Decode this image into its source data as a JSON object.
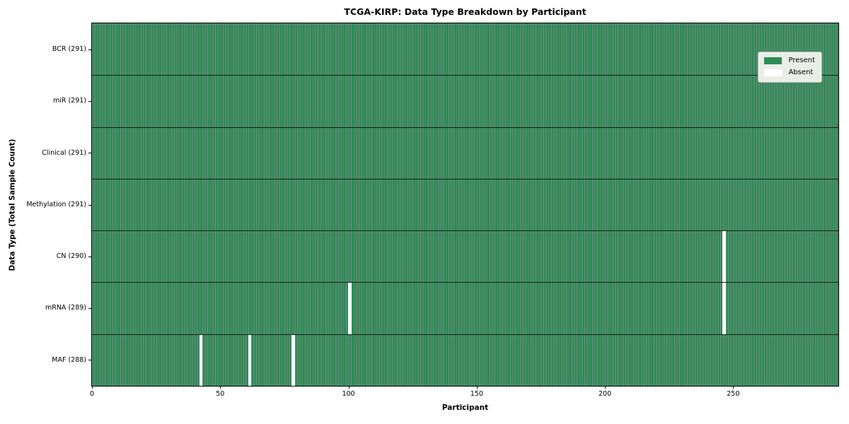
{
  "colors": {
    "present": "#2e8b57",
    "absent": "#ffffff",
    "bar_edge": "rgba(10,40,25,0.55)",
    "row_divider": "#10211a",
    "spine": "#000000",
    "legend_bg": "#e9efe7",
    "legend_border": "#b4bab1"
  },
  "chart_data": {
    "type": "heatmap",
    "title": "TCGA-KIRP: Data Type Breakdown by Participant",
    "xlabel": "Participant",
    "ylabel": "Data Type (Total Sample Count)",
    "x_range": [
      0,
      291
    ],
    "x_ticks": [
      0,
      50,
      100,
      150,
      200,
      250
    ],
    "n_participants": 291,
    "grid": false,
    "legend_position": "upper right",
    "legend": [
      {
        "label": "Present",
        "color": "#2e8b57"
      },
      {
        "label": "Absent",
        "color": "#ffffff"
      }
    ],
    "rows": [
      {
        "label": "BCR (291)",
        "data_type": "BCR",
        "present_count": 291,
        "absent_participants": []
      },
      {
        "label": "miR (291)",
        "data_type": "miR",
        "present_count": 291,
        "absent_participants": []
      },
      {
        "label": "Clinical (291)",
        "data_type": "Clinical",
        "present_count": 291,
        "absent_participants": []
      },
      {
        "label": "Methylation (291)",
        "data_type": "Methylation",
        "present_count": 291,
        "absent_participants": []
      },
      {
        "label": "CN (290)",
        "data_type": "CN",
        "present_count": 290,
        "absent_participants": [
          246
        ]
      },
      {
        "label": "mRNA (289)",
        "data_type": "mRNA",
        "present_count": 289,
        "absent_participants": [
          100,
          246
        ]
      },
      {
        "label": "MAF (288)",
        "data_type": "MAF",
        "present_count": 288,
        "absent_participants": [
          42,
          61,
          78
        ]
      }
    ]
  }
}
